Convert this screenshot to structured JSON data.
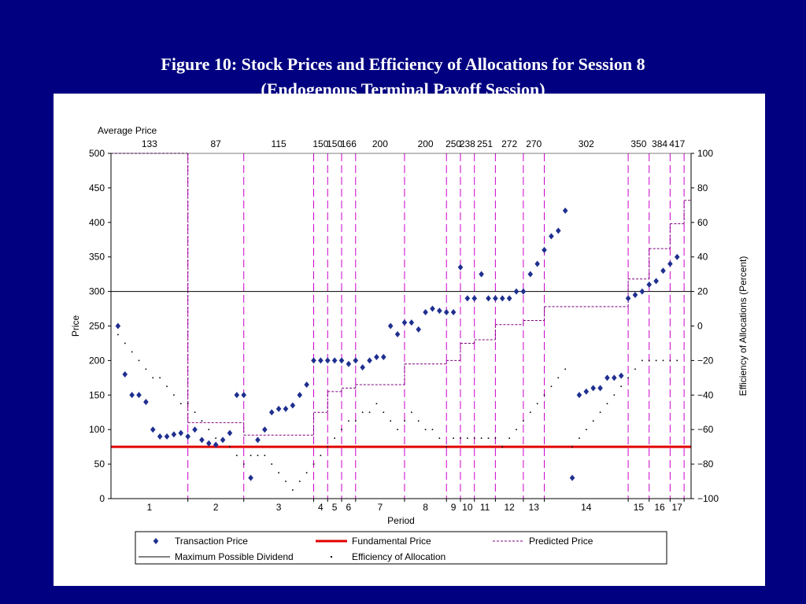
{
  "title": {
    "line1": "Figure 10: Stock Prices and Efficiency of Allocations for Session 8",
    "line2": "(Endogenous Terminal Payoff Session)"
  },
  "colors": {
    "background": "#000080",
    "panel": "#ffffff",
    "transaction": "#1f2f8f",
    "fundamental": "#e00000",
    "predicted": "#800080",
    "period_divider": "#cc00cc",
    "axis": "#000000"
  },
  "chart_data": {
    "type": "scatter",
    "title": "",
    "xlabel": "Period",
    "ylabel": "Price",
    "y2label": "Efficiency of Allocations (Percent)",
    "ylim": [
      0,
      500
    ],
    "y2lim": [
      -100,
      100
    ],
    "yticks": [
      "0",
      "50",
      "100",
      "150",
      "200",
      "250",
      "300",
      "350",
      "400",
      "450",
      "500"
    ],
    "y2ticks": [
      "−100",
      "−80",
      "−60",
      "−40",
      "−20",
      "0",
      "20",
      "40",
      "60",
      "80",
      "100"
    ],
    "x_unit": "transaction index",
    "xlim": [
      0,
      83
    ],
    "avg_price_caption": "Average Price",
    "legend_position": "bottom",
    "periods": [
      {
        "label": "1",
        "start": 0,
        "end": 11,
        "avg": "133",
        "predicted": 500
      },
      {
        "label": "2",
        "start": 11,
        "end": 19,
        "avg": "87",
        "predicted": 110
      },
      {
        "label": "3",
        "start": 19,
        "end": 29,
        "avg": "115",
        "predicted": 92
      },
      {
        "label": "4",
        "start": 29,
        "end": 31,
        "avg": "150",
        "predicted": 125
      },
      {
        "label": "5",
        "start": 31,
        "end": 33,
        "avg": "150",
        "predicted": 155
      },
      {
        "label": "6",
        "start": 33,
        "end": 35,
        "avg": "166",
        "predicted": 160
      },
      {
        "label": "7",
        "start": 35,
        "end": 42,
        "avg": "200",
        "predicted": 165
      },
      {
        "label": "8",
        "start": 42,
        "end": 48,
        "avg": "200",
        "predicted": 195
      },
      {
        "label": "9",
        "start": 48,
        "end": 50,
        "avg": "250",
        "predicted": 200
      },
      {
        "label": "10",
        "start": 50,
        "end": 52,
        "avg": "238",
        "predicted": 225
      },
      {
        "label": "11",
        "start": 52,
        "end": 55,
        "avg": "251",
        "predicted": 230
      },
      {
        "label": "12",
        "start": 55,
        "end": 59,
        "avg": "272",
        "predicted": 252
      },
      {
        "label": "13",
        "start": 59,
        "end": 62,
        "avg": "270",
        "predicted": 258
      },
      {
        "label": "14",
        "start": 62,
        "end": 74,
        "avg": "302",
        "predicted": 278
      },
      {
        "label": "15",
        "start": 74,
        "end": 77,
        "avg": "350",
        "predicted": 318
      },
      {
        "label": "16",
        "start": 77,
        "end": 80,
        "avg": "384",
        "predicted": 362
      },
      {
        "label": "17",
        "start": 80,
        "end": 82,
        "avg": "417",
        "predicted": 398
      },
      {
        "label": "",
        "start": 82,
        "end": 83,
        "avg": "",
        "predicted": 432
      }
    ],
    "fundamental_price": 75,
    "max_possible_dividend": 300,
    "series": [
      {
        "name": "Transaction Price",
        "x": [
          1,
          2,
          3,
          4,
          5,
          6,
          7,
          8,
          9,
          10,
          11,
          12,
          13,
          14,
          15,
          16,
          17,
          18,
          19,
          20,
          21,
          22,
          23,
          24,
          25,
          26,
          27,
          28,
          29,
          30,
          31,
          32,
          33,
          34,
          35,
          36,
          37,
          38,
          39,
          40,
          41,
          42,
          43,
          44,
          45,
          46,
          47,
          48,
          49,
          50,
          51,
          52,
          53,
          54,
          55,
          56,
          57,
          58,
          59,
          60,
          61,
          62,
          63,
          64,
          65,
          66,
          67,
          68,
          69,
          70,
          71,
          72,
          73,
          74,
          75,
          76,
          77,
          78,
          79,
          80,
          81
        ],
        "y": [
          250,
          180,
          150,
          150,
          140,
          100,
          90,
          90,
          93,
          95,
          90,
          100,
          85,
          80,
          78,
          85,
          95,
          150,
          150,
          30,
          85,
          100,
          125,
          130,
          130,
          135,
          150,
          165,
          200,
          200,
          200,
          200,
          200,
          195,
          200,
          190,
          200,
          205,
          205,
          250,
          238,
          255,
          255,
          245,
          270,
          275,
          272,
          270,
          270,
          335,
          290,
          290,
          325,
          290,
          290,
          290,
          290,
          300,
          300,
          325,
          340,
          360,
          380,
          388,
          417,
          30,
          150,
          155,
          160,
          160,
          175,
          175,
          178,
          290,
          295,
          300,
          310,
          315,
          330,
          340,
          350
        ]
      },
      {
        "name": "Efficiency of Allocation",
        "x": [
          1,
          2,
          3,
          4,
          5,
          6,
          7,
          8,
          9,
          10,
          11,
          12,
          13,
          14,
          15,
          16,
          17,
          18,
          19,
          20,
          21,
          22,
          23,
          24,
          25,
          26,
          27,
          28,
          29,
          30,
          31,
          32,
          33,
          34,
          35,
          36,
          37,
          38,
          39,
          40,
          41,
          42,
          43,
          44,
          45,
          46,
          47,
          48,
          49,
          50,
          51,
          52,
          53,
          54,
          55,
          56,
          57,
          58,
          59,
          60,
          61,
          62,
          63,
          64,
          65,
          66,
          67,
          68,
          69,
          70,
          71,
          72,
          73,
          74,
          75,
          76,
          77,
          78,
          79,
          80,
          81
        ],
        "y": [
          -5,
          -10,
          -15,
          -20,
          -25,
          -30,
          -30,
          -35,
          -40,
          -45,
          -45,
          -50,
          -55,
          -60,
          -65,
          -65,
          -70,
          -75,
          -80,
          -75,
          -75,
          -75,
          -80,
          -85,
          -90,
          -95,
          -90,
          -85,
          -80,
          -75,
          -70,
          -65,
          -60,
          -55,
          -55,
          -50,
          -50,
          -45,
          -50,
          -55,
          -60,
          -55,
          -50,
          -55,
          -60,
          -60,
          -65,
          -70,
          -65,
          -65,
          -65,
          -65,
          -65,
          -65,
          -65,
          -70,
          -65,
          -60,
          -55,
          -50,
          -45,
          -40,
          -35,
          -30,
          -25,
          -70,
          -65,
          -60,
          -55,
          -50,
          -45,
          -40,
          -35,
          -30,
          -25,
          -20,
          -20,
          -20,
          -20,
          -20,
          -20
        ]
      },
      {
        "name": "Fundamental Price"
      },
      {
        "name": "Predicted Price"
      },
      {
        "name": "Maximum Possible Dividend"
      }
    ]
  }
}
